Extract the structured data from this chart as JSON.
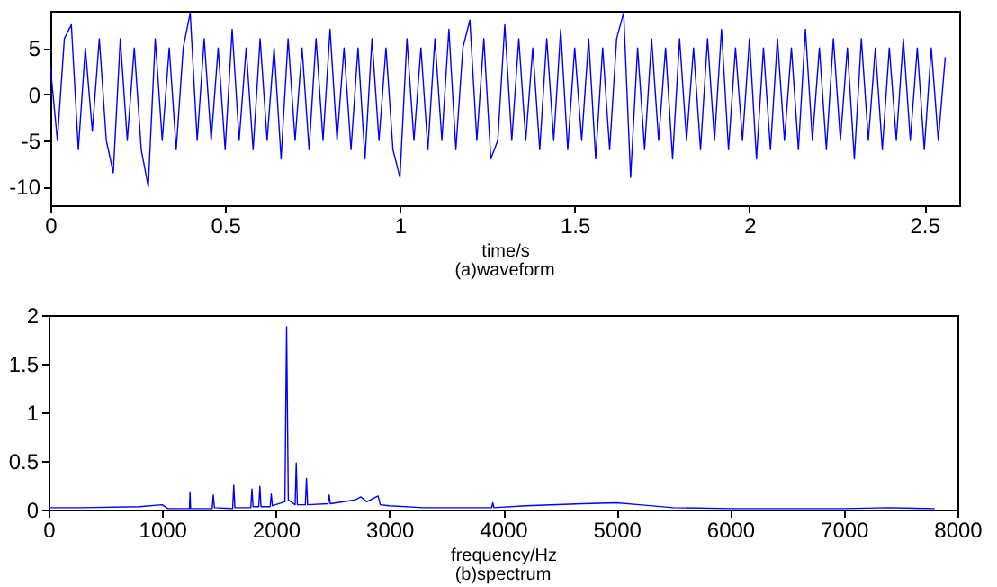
{
  "chart_data": [
    {
      "type": "line",
      "xlabel": "time/s",
      "annotations": [
        "(a)waveform"
      ],
      "xlim": [
        0,
        2.6
      ],
      "ylim": [
        -12,
        9
      ],
      "xticks": [
        0,
        0.5,
        1,
        1.5,
        2,
        2.5
      ],
      "yticks": [
        -10,
        -5,
        0,
        5
      ],
      "grid": false,
      "marker": "none",
      "x": [
        0,
        0.02,
        0.04,
        0.06,
        0.08,
        0.1,
        0.12,
        0.14,
        0.16,
        0.18,
        0.2,
        0.22,
        0.24,
        0.26,
        0.28,
        0.3,
        0.32,
        0.34,
        0.36,
        0.38,
        0.4,
        0.42,
        0.44,
        0.46,
        0.48,
        0.5,
        0.52,
        0.54,
        0.56,
        0.58,
        0.6,
        0.62,
        0.64,
        0.66,
        0.68,
        0.7,
        0.72,
        0.74,
        0.76,
        0.78,
        0.8,
        0.82,
        0.84,
        0.86,
        0.88,
        0.9,
        0.92,
        0.94,
        0.96,
        0.98,
        1,
        1.02,
        1.04,
        1.06,
        1.08,
        1.1,
        1.12,
        1.14,
        1.16,
        1.18,
        1.2,
        1.22,
        1.24,
        1.26,
        1.28,
        1.3,
        1.32,
        1.34,
        1.36,
        1.38,
        1.4,
        1.42,
        1.44,
        1.46,
        1.48,
        1.5,
        1.52,
        1.54,
        1.56,
        1.58,
        1.6,
        1.62,
        1.64,
        1.66,
        1.68,
        1.7,
        1.72,
        1.74,
        1.76,
        1.78,
        1.8,
        1.82,
        1.84,
        1.86,
        1.88,
        1.9,
        1.92,
        1.94,
        1.96,
        1.98,
        2,
        2.02,
        2.04,
        2.06,
        2.08,
        2.1,
        2.12,
        2.14,
        2.16,
        2.18,
        2.2,
        2.22,
        2.24,
        2.26,
        2.28,
        2.3,
        2.32,
        2.34,
        2.36,
        2.38,
        2.4,
        2.42,
        2.44,
        2.46,
        2.48,
        2.5,
        2.52,
        2.54,
        2.56
      ],
      "series": [
        {
          "color": "#0000ff",
          "values": [
            3,
            -5,
            6,
            7.5,
            -6,
            5,
            -4,
            6,
            -5,
            -8.5,
            6,
            -5,
            5,
            -6,
            -10,
            6,
            -5,
            5,
            -6,
            5,
            8.8,
            -5,
            6,
            -5,
            5,
            -6,
            7,
            -5,
            5,
            -6,
            6,
            -5,
            5,
            -7,
            6,
            -5,
            5,
            -6,
            6,
            -5,
            7,
            -5,
            5,
            -6,
            5,
            -7,
            6,
            -5,
            5,
            -6,
            -9,
            6,
            -5,
            5,
            -6,
            6,
            -5,
            7,
            -6,
            5,
            8,
            -5,
            6,
            -7,
            -5,
            7.5,
            -5,
            6,
            -5,
            5,
            -6,
            6,
            -5,
            7,
            -6,
            5,
            -5,
            6,
            -7,
            5,
            -6,
            6,
            8.8,
            -9,
            5,
            -6,
            6,
            -5,
            5,
            -7,
            6,
            -5,
            5,
            -6,
            6,
            -5,
            7,
            -6,
            5,
            -5,
            6,
            -7,
            5,
            -6,
            6,
            -5,
            5,
            -6,
            7,
            -5,
            5,
            -6,
            6,
            -5,
            5,
            -7,
            6,
            -5,
            5,
            -6,
            5,
            -5,
            6,
            -5,
            5,
            -6,
            5,
            -5,
            4
          ]
        }
      ]
    },
    {
      "type": "line",
      "xlabel": "frequency/Hz",
      "annotations": [
        "(b)spectrum"
      ],
      "xlim": [
        0,
        8000
      ],
      "ylim": [
        0,
        2
      ],
      "xticks": [
        0,
        1000,
        2000,
        3000,
        4000,
        5000,
        6000,
        7000,
        8000
      ],
      "yticks": [
        0,
        0.5,
        1,
        1.5,
        2
      ],
      "grid": false,
      "marker": "none",
      "x": [
        0,
        300,
        800,
        1000,
        1050,
        1240,
        1245,
        1250,
        1440,
        1450,
        1460,
        1620,
        1630,
        1640,
        1780,
        1790,
        1800,
        1850,
        1860,
        1870,
        1950,
        1960,
        1970,
        2080,
        2095,
        2110,
        2170,
        2180,
        2190,
        2260,
        2270,
        2280,
        2460,
        2470,
        2480,
        2700,
        2750,
        2800,
        2900,
        2920,
        3000,
        3300,
        3900,
        3910,
        3920,
        4200,
        4700,
        5000,
        5200,
        5500,
        6000,
        7000,
        7400,
        7800
      ],
      "series": [
        {
          "color": "#0000ff",
          "values": [
            0.02,
            0.02,
            0.03,
            0.05,
            0.01,
            0.01,
            0.18,
            0.01,
            0.01,
            0.15,
            0.02,
            0.01,
            0.25,
            0.02,
            0.02,
            0.21,
            0.03,
            0.03,
            0.24,
            0.03,
            0.03,
            0.16,
            0.04,
            0.08,
            1.88,
            0.1,
            0.05,
            0.48,
            0.05,
            0.05,
            0.32,
            0.05,
            0.06,
            0.15,
            0.06,
            0.1,
            0.13,
            0.08,
            0.14,
            0.05,
            0.04,
            0.02,
            0.02,
            0.07,
            0.02,
            0.04,
            0.06,
            0.07,
            0.05,
            0.02,
            0.01,
            0.01,
            0.02,
            0.01
          ]
        }
      ]
    }
  ]
}
